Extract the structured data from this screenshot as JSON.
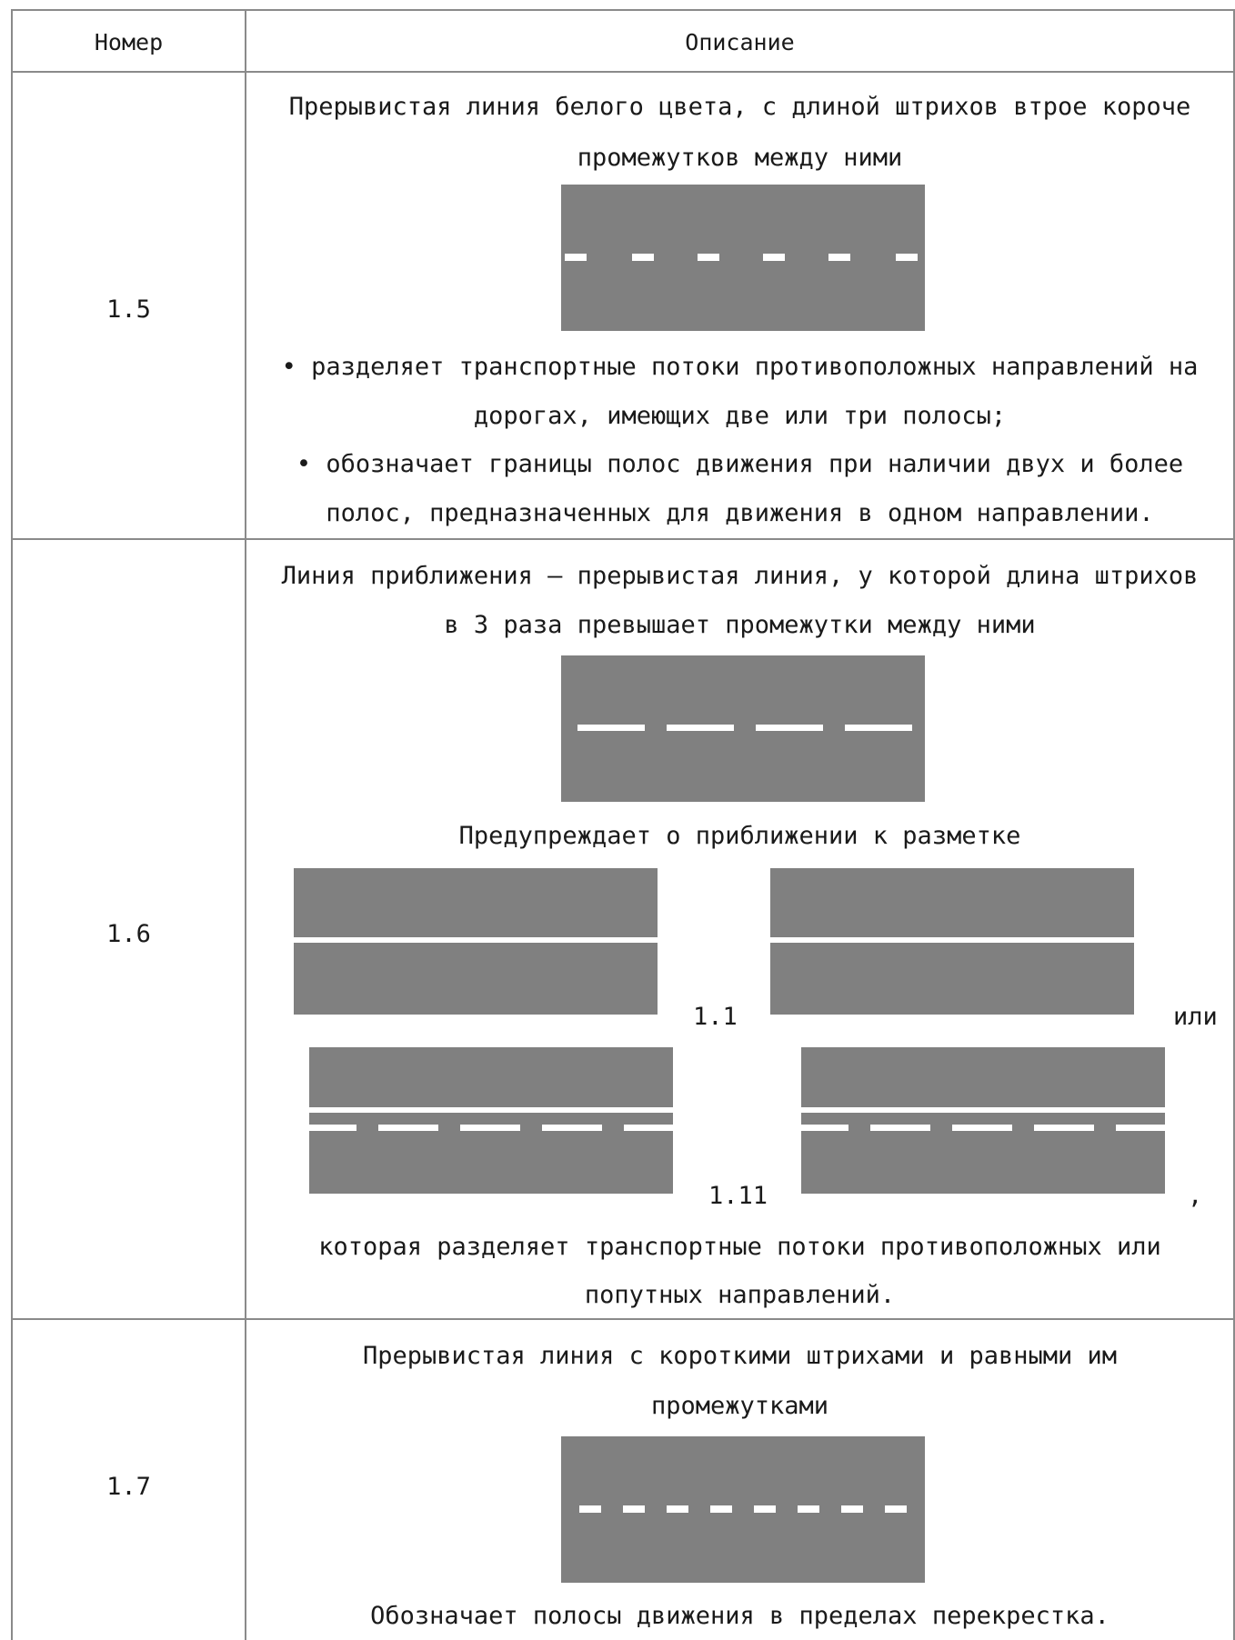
{
  "header": {
    "col_number": "Номер",
    "col_description": "Описание"
  },
  "rows": [
    {
      "number": "1.5",
      "description_lines": [
        "Прерывистая линия белого цвета, с длиной штрихов втрое короче",
        "промежутков между ними"
      ],
      "usage_lines": [
        "• разделяет транспортные потоки противоположных направлений на",
        "дорогах, имеющих две или три полосы;",
        "• обозначает границы полос движения при наличии двух и более",
        "полос, предназначенных для движения в одном направлении."
      ]
    },
    {
      "number": "1.6",
      "description_lines": [
        "Линия приближения — прерывистая линия, у которой длина штрихов",
        "в 3 раза превышает промежутки между ними"
      ],
      "warning": "Предупреждает о приближении к разметке",
      "ref_1": "1.1",
      "or_word": "или",
      "ref_2": "1.11",
      "comma": ",",
      "tail_lines": [
        "которая разделяет транспортные потоки противоположных или",
        "попутных направлений."
      ]
    },
    {
      "number": "1.7",
      "description_lines": [
        "Прерывистая линия с короткими штрихами и равными им",
        "промежутками"
      ],
      "usage_lines": [
        "Обозначает полосы движения в пределах перекрестка."
      ]
    }
  ],
  "colors": {
    "road": "#808080",
    "marking": "#ffffff",
    "grid": "#8a8a8a"
  }
}
